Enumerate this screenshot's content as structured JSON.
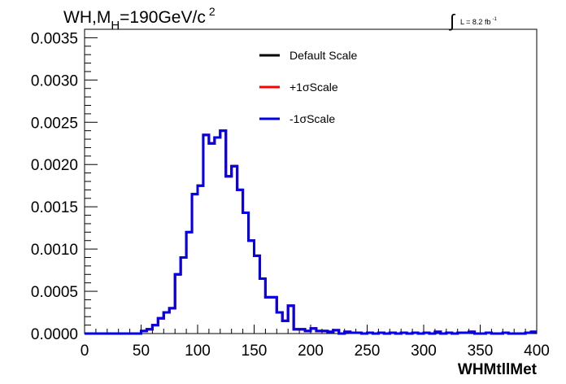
{
  "chart_data": {
    "type": "line",
    "title_main": "WH,M",
    "title_sub": "H",
    "title_tail": "=190GeV/c",
    "title_sup": "2",
    "lumi_main": "L = 8.2 fb",
    "lumi_sup": "-1",
    "xlabel": "WHMtllMet",
    "ylabel": "",
    "xlim": [
      0,
      400
    ],
    "ylim": [
      0,
      0.0036
    ],
    "x_ticks": [
      "0",
      "50",
      "100",
      "150",
      "200",
      "250",
      "300",
      "350",
      "400"
    ],
    "y_ticks": [
      "0.0000",
      "0.0005",
      "0.0010",
      "0.0015",
      "0.0020",
      "0.0025",
      "0.0030",
      "0.0035"
    ],
    "bin_width": 5,
    "bin_edges_start": 0,
    "grid": false,
    "legend_position": "top-center",
    "series": [
      {
        "name": "Default Scale",
        "color": "#000000",
        "values": [
          0,
          0,
          0,
          0,
          0,
          0,
          0,
          0,
          0,
          0,
          3e-05,
          5e-05,
          0.0001,
          0.00018,
          0.00025,
          0.0003,
          0.0007,
          0.0009,
          0.0012,
          0.00165,
          0.00175,
          0.00235,
          0.00225,
          0.00232,
          0.0024,
          0.00186,
          0.00198,
          0.0017,
          0.00143,
          0.0011,
          0.00092,
          0.00065,
          0.00043,
          0.00043,
          0.00025,
          0.00015,
          0.00033,
          5e-05,
          5e-05,
          3e-05,
          6e-05,
          3e-05,
          3e-05,
          2e-05,
          4e-05,
          0,
          2e-05,
          1e-05,
          1e-05,
          0,
          1e-05,
          0,
          1e-05,
          0,
          1e-05,
          0,
          1e-05,
          0,
          1e-05,
          0,
          1e-05,
          0,
          2e-05,
          0,
          1e-05,
          0,
          1e-05,
          1e-05,
          2e-05,
          0,
          0,
          1e-05,
          0,
          0,
          1e-05,
          0,
          0,
          0,
          1e-05,
          2e-05
        ]
      },
      {
        "name": "+1σScale",
        "color": "#ff0000",
        "values": [
          0,
          0,
          0,
          0,
          0,
          0,
          0,
          0,
          0,
          0,
          3e-05,
          5e-05,
          0.0001,
          0.00018,
          0.00025,
          0.0003,
          0.0007,
          0.0009,
          0.0012,
          0.00165,
          0.00175,
          0.00235,
          0.00225,
          0.00232,
          0.0024,
          0.00186,
          0.00198,
          0.0017,
          0.00143,
          0.0011,
          0.00092,
          0.00065,
          0.00043,
          0.00043,
          0.00025,
          0.00015,
          0.00033,
          5e-05,
          5e-05,
          3e-05,
          6e-05,
          3e-05,
          3e-05,
          2e-05,
          4e-05,
          0,
          2e-05,
          1e-05,
          1e-05,
          0,
          1e-05,
          0,
          1e-05,
          0,
          1e-05,
          0,
          1e-05,
          0,
          1e-05,
          0,
          1e-05,
          0,
          2e-05,
          0,
          1e-05,
          0,
          1e-05,
          1e-05,
          2e-05,
          0,
          0,
          1e-05,
          0,
          0,
          1e-05,
          0,
          0,
          0,
          1e-05,
          2e-05
        ]
      },
      {
        "name": "-1σScale",
        "color": "#0000ee",
        "values": [
          0,
          0,
          0,
          0,
          0,
          0,
          0,
          0,
          0,
          0,
          3e-05,
          5e-05,
          0.0001,
          0.00018,
          0.00025,
          0.0003,
          0.0007,
          0.0009,
          0.0012,
          0.00165,
          0.00175,
          0.00235,
          0.00225,
          0.00232,
          0.0024,
          0.00186,
          0.00198,
          0.0017,
          0.00143,
          0.0011,
          0.00092,
          0.00065,
          0.00043,
          0.00043,
          0.00025,
          0.00015,
          0.00033,
          5e-05,
          5e-05,
          3e-05,
          6e-05,
          3e-05,
          3e-05,
          2e-05,
          4e-05,
          0,
          2e-05,
          1e-05,
          1e-05,
          0,
          1e-05,
          0,
          1e-05,
          0,
          1e-05,
          0,
          1e-05,
          0,
          1e-05,
          0,
          1e-05,
          0,
          2e-05,
          0,
          1e-05,
          0,
          1e-05,
          1e-05,
          2e-05,
          0,
          0,
          1e-05,
          0,
          0,
          1e-05,
          0,
          0,
          0,
          1e-05,
          2e-05
        ]
      }
    ]
  }
}
